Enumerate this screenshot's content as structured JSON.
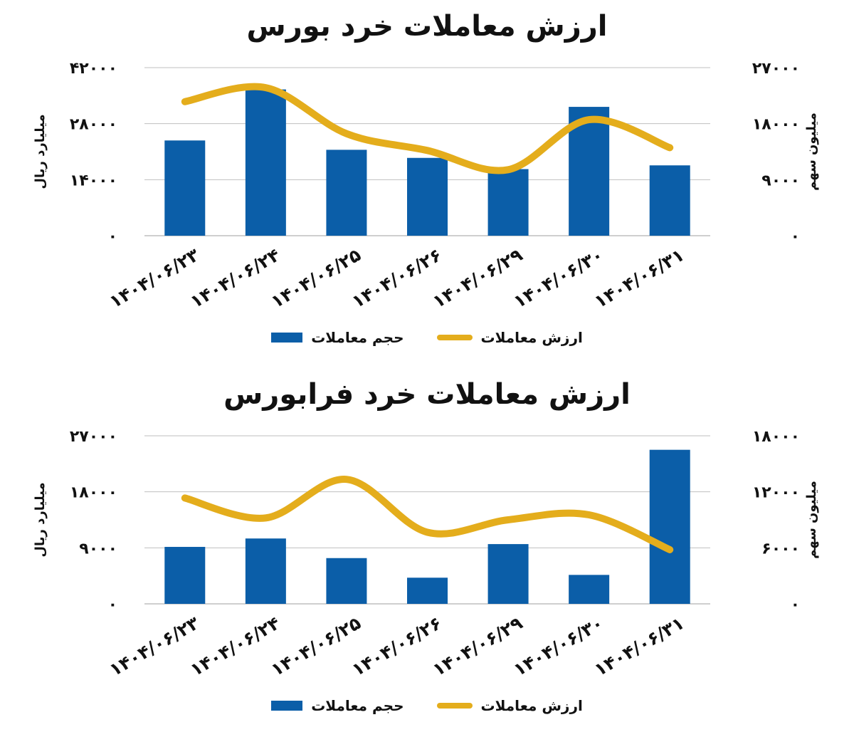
{
  "colors": {
    "bar": "#0b5ea8",
    "line": "#e4ad1c",
    "grid": "#bfbfbf"
  },
  "chart_data": [
    {
      "type": "bar",
      "title": "ارزش معاملات خرد بورس",
      "categories": [
        "۱۴۰۴/۰۶/۲۳",
        "۱۴۰۴/۰۶/۲۴",
        "۱۴۰۴/۰۶/۲۵",
        "۱۴۰۴/۰۶/۲۶",
        "۱۴۰۴/۰۶/۲۹",
        "۱۴۰۴/۰۶/۳۰",
        "۱۴۰۴/۰۶/۳۱"
      ],
      "ylabel_left": "میلیارد ریال",
      "ylabel_right": "میلیون سهم",
      "left_axis": {
        "ticks": [
          "۰",
          "۱۴۰۰۰",
          "۲۸۰۰۰",
          "۴۲۰۰۰"
        ],
        "ylim": [
          0,
          42000
        ]
      },
      "right_axis": {
        "ticks": [
          "۰",
          "۹۰۰۰",
          "۱۸۰۰۰",
          "۲۷۰۰۰"
        ],
        "ylim": [
          0,
          27000
        ]
      },
      "series": [
        {
          "name": "حجم معاملات",
          "type": "bar",
          "axis": "right",
          "values": [
            15300,
            23500,
            13800,
            12500,
            10700,
            20700,
            11300
          ]
        },
        {
          "name": "ارزش معاملات",
          "type": "line",
          "axis": "left",
          "values": [
            33500,
            37000,
            25500,
            21300,
            16500,
            29000,
            22000
          ]
        }
      ],
      "grid": true,
      "legend_position": "bottom"
    },
    {
      "type": "bar",
      "title": "ارزش معاملات خرد فرابورس",
      "categories": [
        "۱۴۰۴/۰۶/۲۳",
        "۱۴۰۴/۰۶/۲۴",
        "۱۴۰۴/۰۶/۲۵",
        "۱۴۰۴/۰۶/۲۶",
        "۱۴۰۴/۰۶/۲۹",
        "۱۴۰۴/۰۶/۳۰",
        "۱۴۰۴/۰۶/۳۱"
      ],
      "ylabel_left": "میلیارد ریال",
      "ylabel_right": "میلیون سهم",
      "left_axis": {
        "ticks": [
          "۰",
          "۹۰۰۰",
          "۱۸۰۰۰",
          "۲۷۰۰۰"
        ],
        "ylim": [
          0,
          27000
        ]
      },
      "right_axis": {
        "ticks": [
          "۰",
          "۶۰۰۰",
          "۱۲۰۰۰",
          "۱۸۰۰۰"
        ],
        "ylim": [
          0,
          18000
        ]
      },
      "series": [
        {
          "name": "حجم معاملات",
          "type": "bar",
          "axis": "right",
          "values": [
            6100,
            7000,
            4900,
            2800,
            6400,
            3100,
            16500
          ]
        },
        {
          "name": "ارزش معاملات",
          "type": "line",
          "axis": "left",
          "values": [
            17000,
            13800,
            20000,
            11500,
            13500,
            14300,
            8700
          ]
        }
      ],
      "grid": true,
      "legend_position": "bottom"
    }
  ]
}
